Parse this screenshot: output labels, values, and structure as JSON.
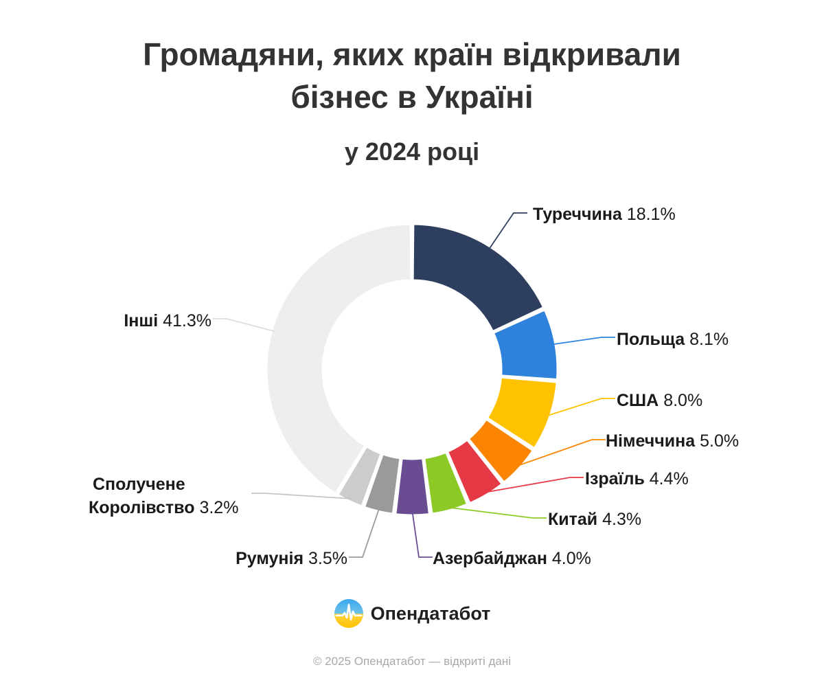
{
  "header": {
    "title_line1": "Громадяни, яких країн відкривали",
    "title_line2": "бізнес в Україні",
    "subtitle": "у 2024 році"
  },
  "chart_data": {
    "type": "pie",
    "variant": "donut",
    "series": [
      {
        "label": "Туреччина",
        "value": 18.1,
        "value_text": "18.1%",
        "color": "#2e3e5e"
      },
      {
        "label": "Польща",
        "value": 8.1,
        "value_text": "8.1%",
        "color": "#2e82dc"
      },
      {
        "label": "США",
        "value": 8.0,
        "value_text": "8.0%",
        "color": "#ffc200"
      },
      {
        "label": "Німеччина",
        "value": 5.0,
        "value_text": "5.0%",
        "color": "#fb8500"
      },
      {
        "label": "Ізраїль",
        "value": 4.4,
        "value_text": "4.4%",
        "color": "#e63946"
      },
      {
        "label": "Китай",
        "value": 4.3,
        "value_text": "4.3%",
        "color": "#8cc924"
      },
      {
        "label": "Азербайджан",
        "value": 4.0,
        "value_text": "4.0%",
        "color": "#6a4c93"
      },
      {
        "label": "Румунія",
        "value": 3.5,
        "value_text": "3.5%",
        "color": "#9a9a9a"
      },
      {
        "label_lines": [
          "Сполучене",
          "Королівство"
        ],
        "value": 3.2,
        "value_text": "3.2%",
        "color": "#cccccc"
      },
      {
        "label": "Інші",
        "value": 41.3,
        "value_text": "41.3%",
        "color": "#eeeeee"
      }
    ]
  },
  "brand": {
    "logo_text": "Опендатабот",
    "logo_icon": "opendatabot-logo-icon"
  },
  "footer": {
    "copyright": "© 2025 Опендатабот — відкриті дані"
  }
}
